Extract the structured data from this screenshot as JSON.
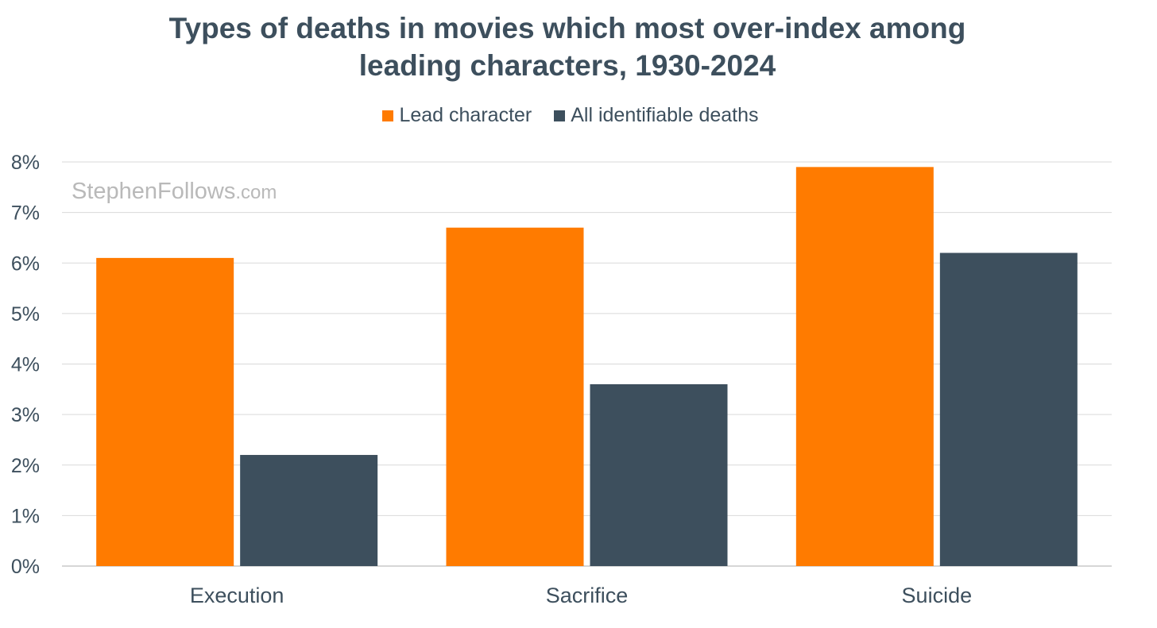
{
  "chart_data": {
    "type": "bar",
    "title": [
      "Types of deaths in movies which most over-index among",
      "leading characters, 1930-2024"
    ],
    "categories": [
      "Execution",
      "Sacrifice",
      "Suicide"
    ],
    "series": [
      {
        "name": "Lead character",
        "color": "#ff7b00",
        "values": [
          6.1,
          6.7,
          7.9
        ]
      },
      {
        "name": "All identifiable deaths",
        "color": "#3d4f5d",
        "values": [
          2.2,
          3.6,
          6.2
        ]
      }
    ],
    "xlabel": "",
    "ylabel": "",
    "ylim": [
      0,
      8
    ],
    "yticks": [
      "0%",
      "1%",
      "2%",
      "3%",
      "4%",
      "5%",
      "6%",
      "7%",
      "8%"
    ],
    "grid": true,
    "legend_position": "top-center"
  },
  "watermark": {
    "main": "StephenFollows",
    "suffix": ".com"
  }
}
